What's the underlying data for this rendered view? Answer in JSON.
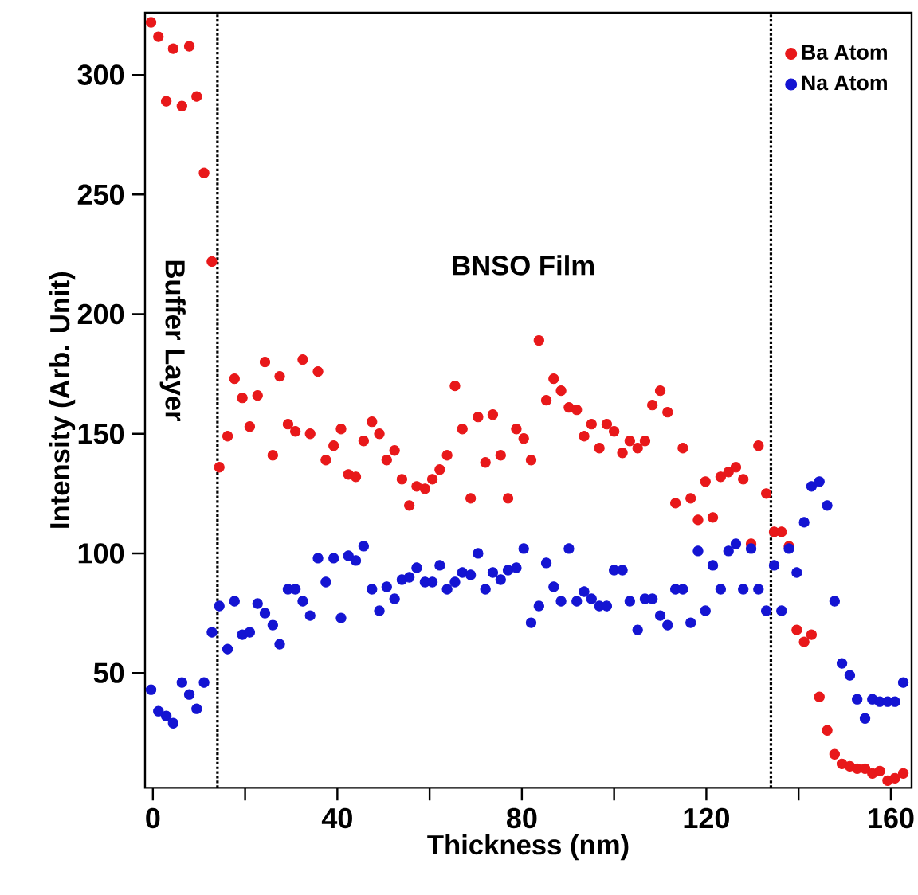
{
  "chart_data": {
    "type": "scatter",
    "xlabel": "Thickness (nm)",
    "ylabel": "Intensity (Arb. Unit)",
    "x": [
      -0.4,
      1.2,
      2.9,
      4.4,
      6.3,
      7.9,
      9.5,
      11.1,
      12.8,
      14.4,
      16.2,
      17.7,
      19.4,
      21,
      22.7,
      24.3,
      26,
      27.5,
      29.3,
      30.9,
      32.5,
      34.1,
      35.8,
      37.5,
      39.2,
      40.8,
      42.4,
      44,
      45.7,
      47.5,
      49.1,
      50.7,
      52.4,
      54,
      55.6,
      57.2,
      59,
      60.6,
      62.2,
      63.8,
      65.5,
      67.1,
      68.9,
      70.5,
      72.1,
      73.7,
      75.4,
      77,
      78.8,
      80.4,
      82,
      83.7,
      85.3,
      86.9,
      88.5,
      90.2,
      91.9,
      93.5,
      95.1,
      96.8,
      98.4,
      100,
      101.8,
      103.4,
      105.1,
      106.7,
      108.3,
      110,
      111.6,
      113.3,
      114.9,
      116.6,
      118.2,
      119.8,
      121.4,
      123.1,
      124.8,
      126.4,
      128,
      129.7,
      131.3,
      133,
      134.7,
      136.3,
      137.9,
      139.6,
      141.2,
      142.8,
      144.5,
      146.2,
      147.8,
      149.4,
      151.1,
      152.7,
      154.4,
      156,
      157.6,
      159.3,
      160.9,
      162.7
    ],
    "series": [
      {
        "name": "Ba Atom",
        "color": "#e8181a",
        "values": [
          322,
          316,
          289,
          311,
          287,
          312,
          291,
          259,
          222,
          136,
          149,
          173,
          165,
          153,
          166,
          180,
          141,
          174,
          154,
          151,
          181,
          150,
          176,
          139,
          145,
          152,
          133,
          132,
          147,
          155,
          150,
          139,
          143,
          131,
          120,
          128,
          127,
          131,
          135,
          141,
          170,
          152,
          123,
          157,
          138,
          158,
          141,
          123,
          152,
          148,
          139,
          189,
          164,
          173,
          168,
          161,
          160,
          149,
          154,
          144,
          154,
          151,
          142,
          147,
          144,
          147,
          162,
          168,
          159,
          121,
          144,
          123,
          114,
          130,
          115,
          132,
          134,
          136,
          131,
          104,
          145,
          125,
          109,
          109,
          103,
          68,
          63,
          66,
          40,
          26,
          16,
          12,
          11,
          10,
          10,
          8,
          9,
          5,
          6,
          8
        ]
      },
      {
        "name": "Na Atom",
        "color": "#1414d2",
        "values": [
          43,
          34,
          32,
          29,
          46,
          41,
          35,
          46,
          67,
          78,
          60,
          80,
          66,
          67,
          79,
          75,
          70,
          62,
          85,
          85,
          80,
          74,
          98,
          88,
          98,
          73,
          99,
          97,
          103,
          85,
          76,
          86,
          81,
          89,
          90,
          94,
          88,
          88,
          95,
          85,
          88,
          92,
          91,
          100,
          85,
          92,
          89,
          93,
          94,
          102,
          71,
          78,
          96,
          86,
          80,
          102,
          80,
          84,
          81,
          78,
          78,
          93,
          93,
          80,
          68,
          81,
          81,
          74,
          70,
          85,
          85,
          71,
          101,
          76,
          95,
          85,
          101,
          104,
          85,
          102,
          85,
          76,
          95,
          76,
          102,
          92,
          113,
          128,
          130,
          120,
          80,
          54,
          49,
          39,
          31,
          39,
          38,
          38,
          38,
          46
        ]
      }
    ],
    "xlim": [
      -1.7,
      164.5
    ],
    "ylim": [
      2,
      326
    ],
    "xticks": [
      0,
      {
        "value": 20,
        "label": null
      },
      40,
      {
        "value": 60,
        "label": null
      },
      80,
      {
        "value": 100,
        "label": null
      },
      120,
      {
        "value": 140,
        "label": null
      },
      160
    ],
    "yticks": [
      50,
      100,
      150,
      200,
      250,
      300
    ],
    "ref_lines": [
      {
        "axis": "x",
        "value": 14,
        "color": "#000000",
        "line_style": "dotted"
      },
      {
        "axis": "x",
        "value": 134,
        "color": "#000000",
        "line_style": "dotted"
      }
    ],
    "annotations": [
      "Buffer Layer",
      "BNSO Film"
    ],
    "legend": "top right",
    "marker": "circle",
    "grid": false
  }
}
